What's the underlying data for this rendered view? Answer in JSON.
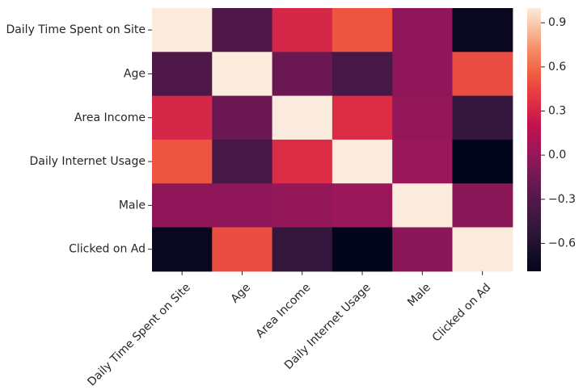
{
  "chart_data": {
    "type": "heatmap",
    "title": "",
    "xlabel": "",
    "ylabel": "",
    "x_categories": [
      "Daily Time Spent on Site",
      "Age",
      "Area Income",
      "Daily Internet Usage",
      "Male",
      "Clicked on Ad"
    ],
    "y_categories": [
      "Daily Time Spent on Site",
      "Age",
      "Area Income",
      "Daily Internet Usage",
      "Male",
      "Clicked on Ad"
    ],
    "values": [
      [
        1.0,
        -0.33,
        0.31,
        0.52,
        -0.02,
        -0.75
      ],
      [
        -0.33,
        1.0,
        -0.18,
        -0.37,
        -0.02,
        0.49
      ],
      [
        0.31,
        -0.18,
        1.0,
        0.34,
        0.0,
        -0.48
      ],
      [
        0.52,
        -0.37,
        0.34,
        1.0,
        0.03,
        -0.79
      ],
      [
        -0.02,
        -0.02,
        0.0,
        0.03,
        1.0,
        -0.04
      ],
      [
        -0.75,
        0.49,
        -0.48,
        -0.79,
        -0.04,
        1.0
      ]
    ],
    "colorbar": {
      "ticks": [
        0.9,
        0.6,
        0.3,
        0.0,
        -0.3,
        -0.6
      ],
      "tick_labels": [
        "0.9",
        "0.6",
        "0.3",
        "0.0",
        "−0.3",
        "−0.6"
      ],
      "vmin": -0.79,
      "vmax": 1.0
    },
    "colormap": "rocket",
    "grid": false,
    "legend": "colorbar-right"
  }
}
